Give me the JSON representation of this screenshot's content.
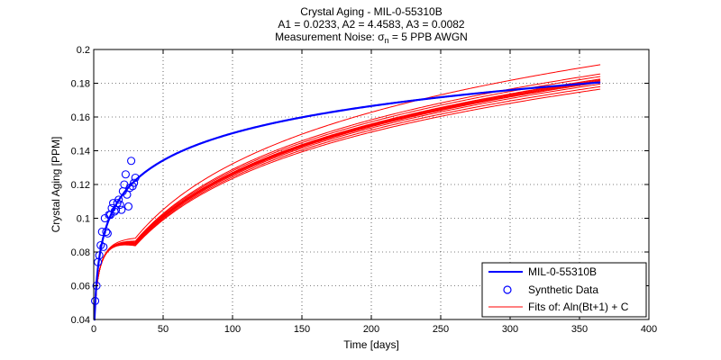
{
  "chart_data": {
    "type": "line",
    "title": {
      "line1": "Crystal Aging - MIL-0-55310B",
      "line2": "A1 = 0.0233,  A2 = 4.4583,  A3 = 0.0082",
      "line3_prefix": "Measurement Noise: ",
      "line3_sigma": "σ",
      "line3_sub": "n",
      "line3_suffix": " = 5 PPB AWGN"
    },
    "xlabel": "Time [days]",
    "ylabel": "Crystal Aging [PPM]",
    "xlim": [
      0,
      400
    ],
    "ylim": [
      0.04,
      0.2
    ],
    "xticks": [
      0,
      50,
      100,
      150,
      200,
      250,
      300,
      350,
      400
    ],
    "yticks": [
      0.04,
      0.06,
      0.08,
      0.1,
      0.12,
      0.14,
      0.16,
      0.18,
      0.2
    ],
    "grid": true,
    "legend": {
      "position": "bottom-right",
      "entries": [
        {
          "label": "MIL-0-55310B",
          "style": "line",
          "color": "#0000ff"
        },
        {
          "label": "Synthetic Data",
          "style": "circle",
          "color": "#0000ff"
        },
        {
          "label_prefix": "Fits of: ",
          "label_formula": "Aln(Bt+1) + C",
          "style": "line",
          "color": "#ff0000"
        }
      ]
    },
    "reference_model": {
      "name": "MIL-0-55310B",
      "formula": "A1*ln(A2*t+1)+A3",
      "A1": 0.0233,
      "A2": 4.4583,
      "A3": 0.0082,
      "t_range": [
        0,
        365
      ],
      "color": "#0000ff"
    },
    "synthetic_data": {
      "name": "Synthetic Data",
      "color": "#0000ff",
      "points": [
        [
          1,
          0.051
        ],
        [
          2,
          0.06
        ],
        [
          3,
          0.074
        ],
        [
          4,
          0.078
        ],
        [
          5,
          0.084
        ],
        [
          6,
          0.092
        ],
        [
          7,
          0.083
        ],
        [
          8,
          0.1
        ],
        [
          9,
          0.092
        ],
        [
          10,
          0.091
        ],
        [
          11,
          0.102
        ],
        [
          12,
          0.102
        ],
        [
          13,
          0.106
        ],
        [
          14,
          0.109
        ],
        [
          15,
          0.104
        ],
        [
          16,
          0.105
        ],
        [
          17,
          0.109
        ],
        [
          18,
          0.111
        ],
        [
          19,
          0.108
        ],
        [
          20,
          0.105
        ],
        [
          21,
          0.116
        ],
        [
          22,
          0.12
        ],
        [
          23,
          0.126
        ],
        [
          24,
          0.114
        ],
        [
          25,
          0.107
        ],
        [
          26,
          0.118
        ],
        [
          27,
          0.134
        ],
        [
          28,
          0.119
        ],
        [
          29,
          0.121
        ],
        [
          30,
          0.124
        ]
      ]
    },
    "fits": {
      "name": "Fits of: Aln(Bt+1) + C",
      "color": "#ff0000",
      "t_range": [
        0,
        365
      ],
      "endpoints_at_365": [
        0.191,
        0.1855,
        0.184,
        0.1825,
        0.182,
        0.1815,
        0.181,
        0.1805,
        0.1795,
        0.178,
        0.1765
      ]
    }
  }
}
